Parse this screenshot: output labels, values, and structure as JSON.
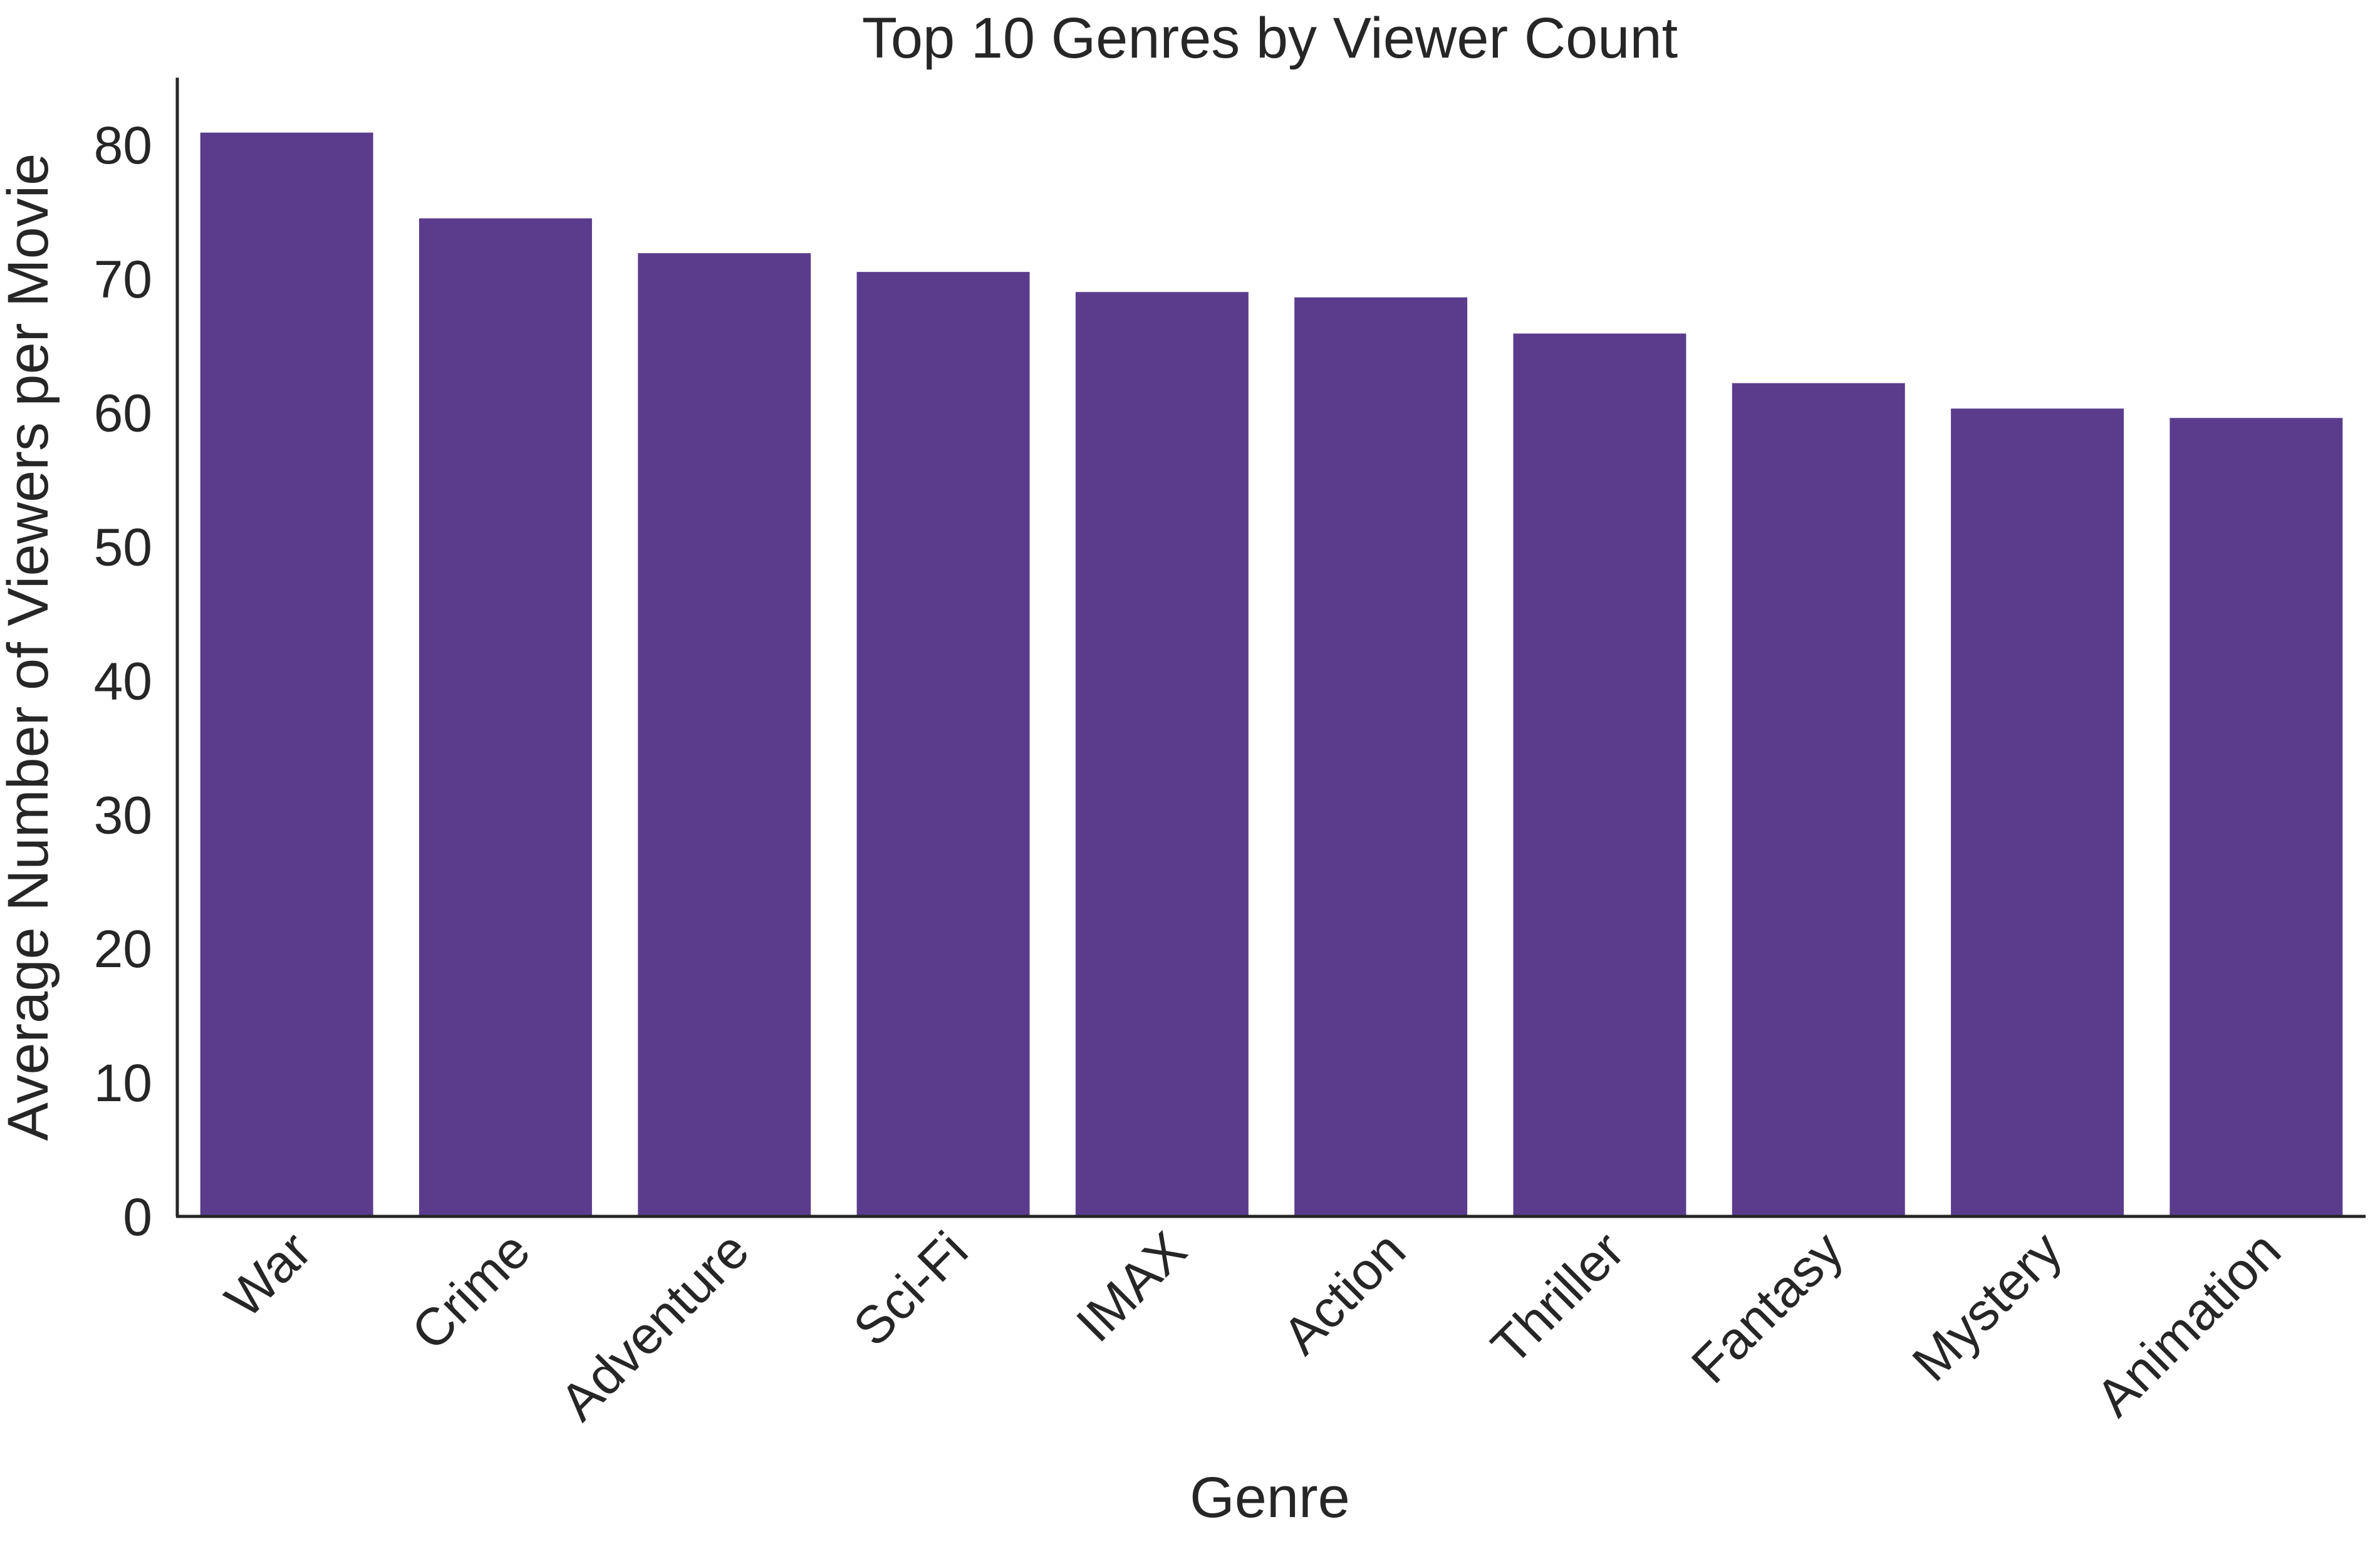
{
  "chart_data": {
    "type": "bar",
    "title": "Top 10 Genres by Viewer Count",
    "xlabel": "Genre",
    "ylabel": "Average Number of Viewers per Movie",
    "categories": [
      "War",
      "Crime",
      "Adventure",
      "Sci-Fi",
      "IMAX",
      "Action",
      "Thriller",
      "Fantasy",
      "Mystery",
      "Animation"
    ],
    "values": [
      80.9,
      74.5,
      71.9,
      70.5,
      69.0,
      68.6,
      65.9,
      62.2,
      60.3,
      59.6
    ],
    "ylim": [
      0,
      85
    ],
    "yticks": [
      0,
      10,
      20,
      30,
      40,
      50,
      60,
      70,
      80
    ],
    "bar_color": "#5b3c8c",
    "grid": false,
    "legend": "none"
  }
}
